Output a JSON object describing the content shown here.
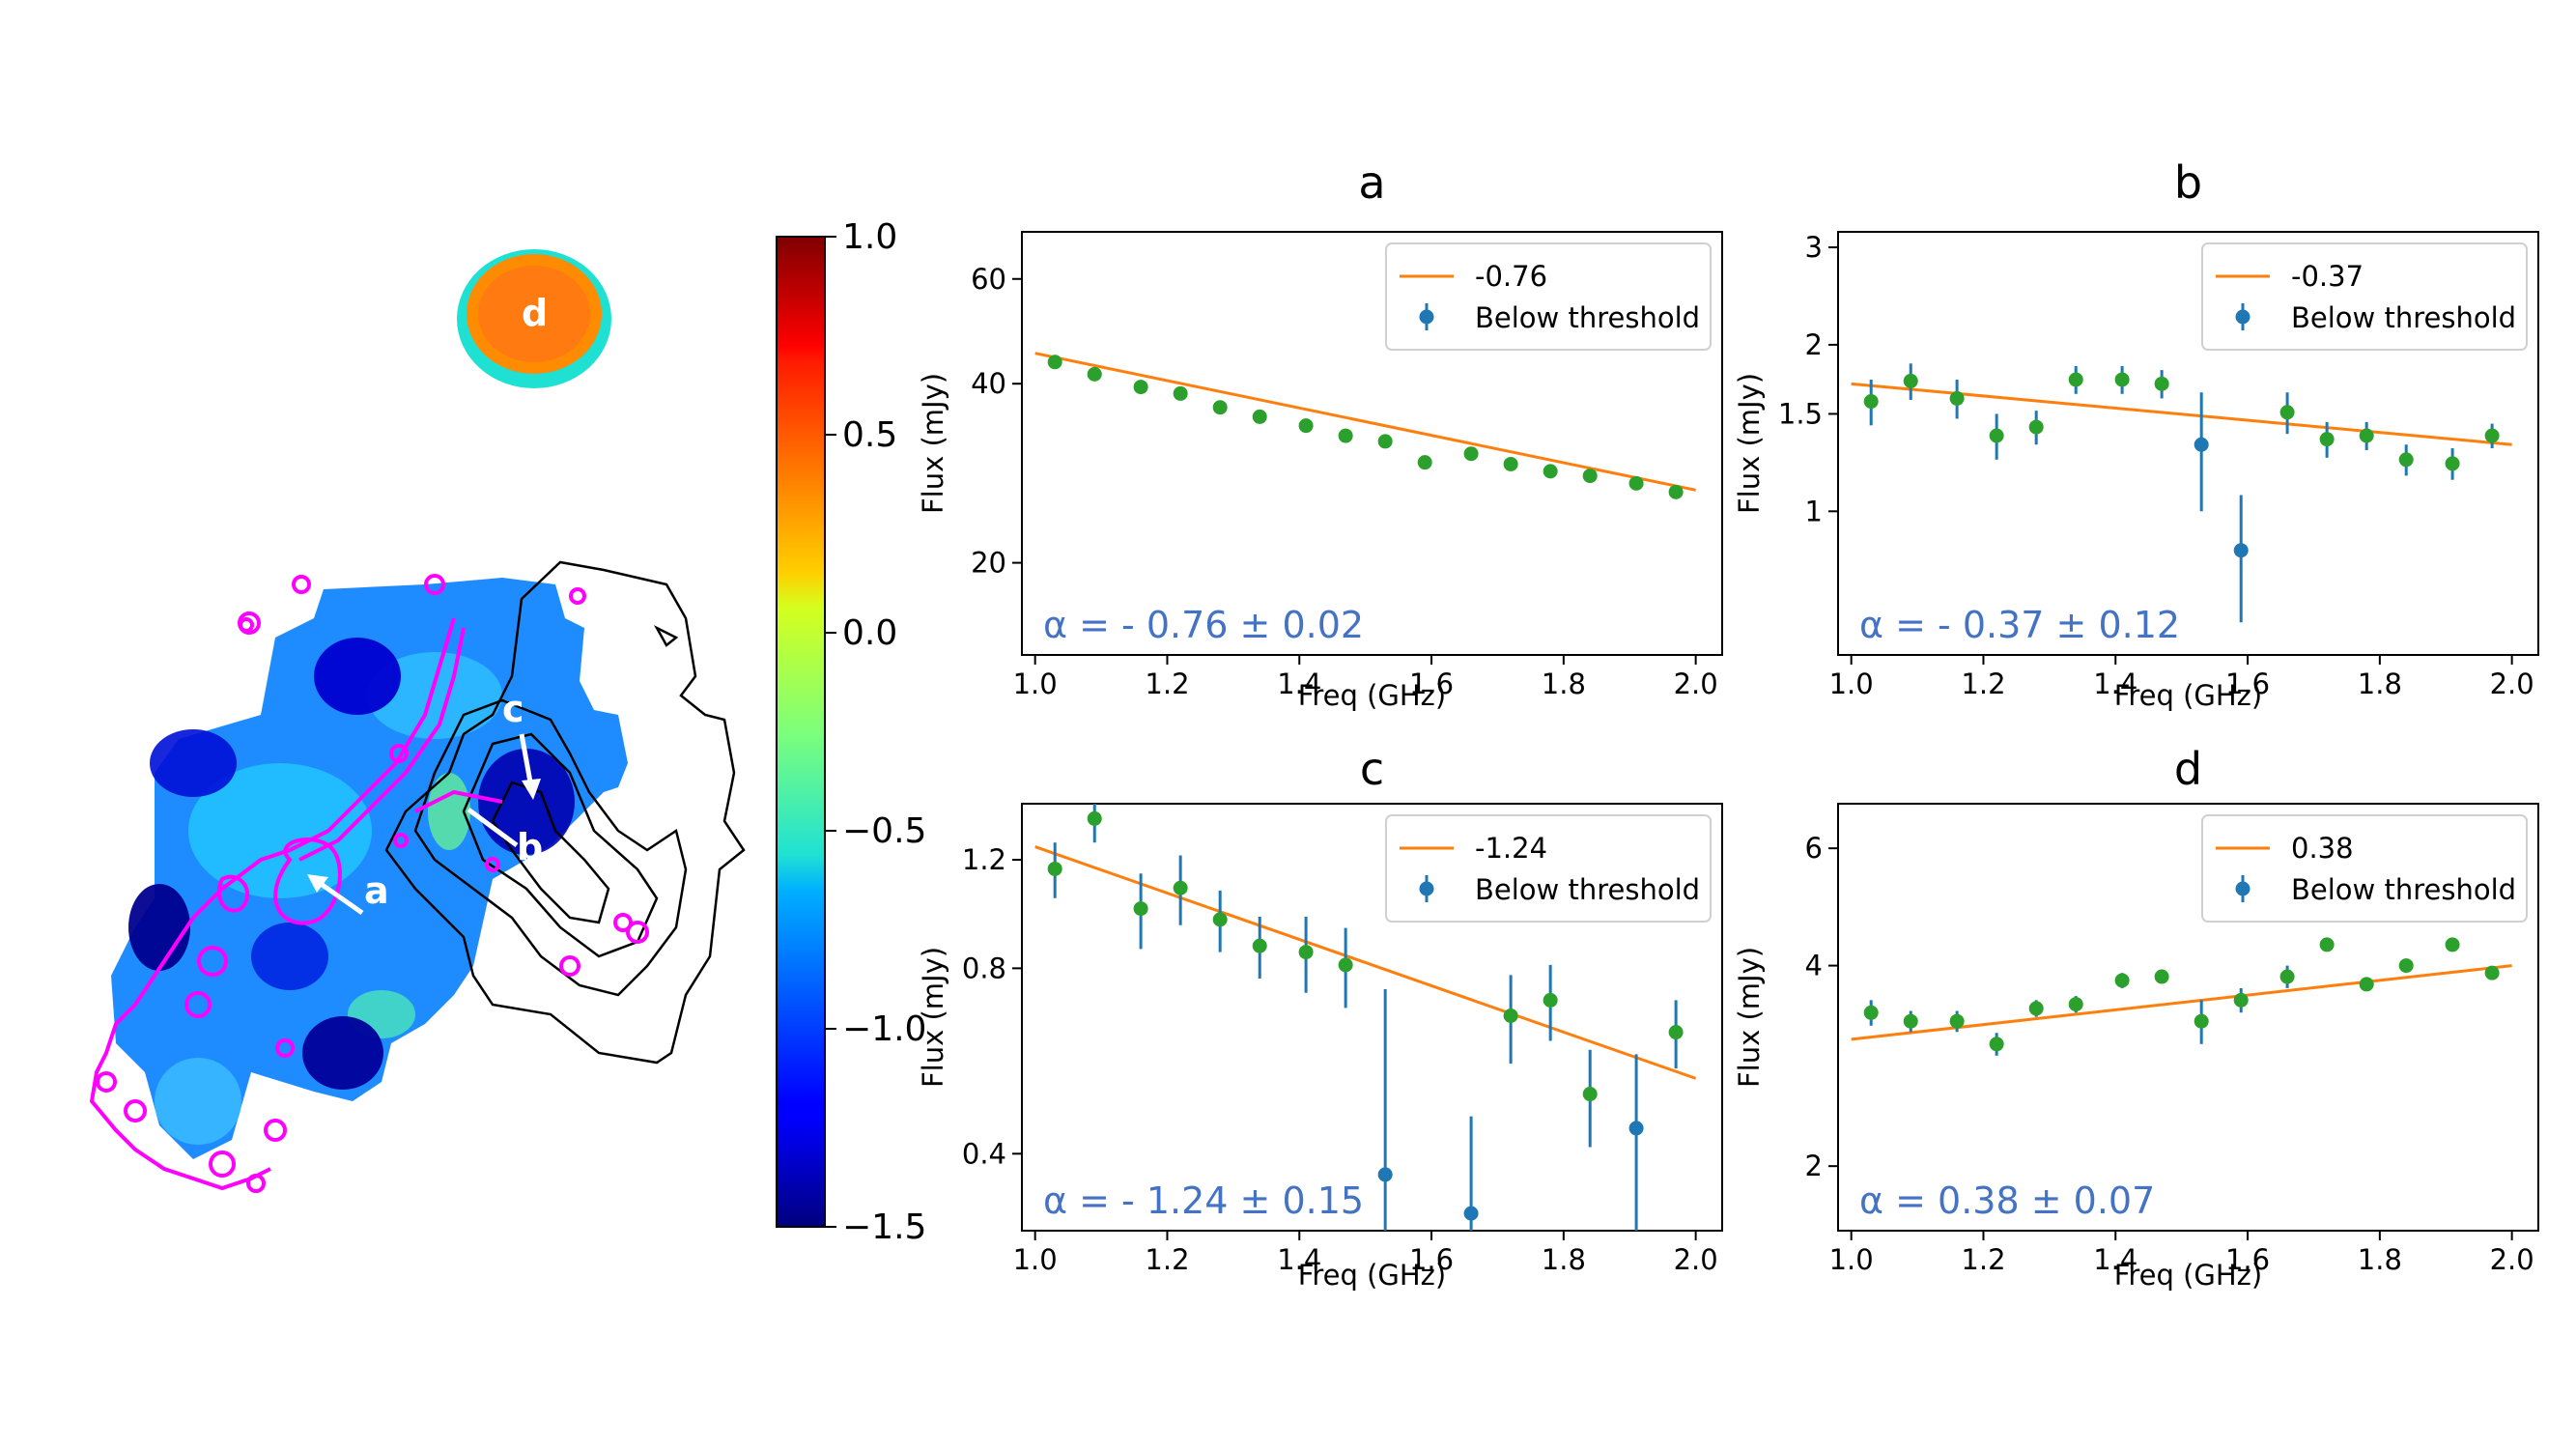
{
  "colorbar": {
    "min": -1.5,
    "max": 1.0,
    "ticks": [
      "1.0",
      "0.5",
      "0.0",
      "−0.5",
      "−1.0",
      "−1.5"
    ],
    "colormap": "jet"
  },
  "map": {
    "region_labels": [
      "a",
      "b",
      "c",
      "d"
    ],
    "contour_colors": {
      "optical": "#ff00ff",
      "radio": "#000000"
    }
  },
  "chart_data": [
    {
      "type": "scatter",
      "title": "a",
      "xlabel": "Freq (GHz)",
      "ylabel": "Flux (mJy)",
      "xscale": "linear",
      "yscale": "log",
      "xlim": [
        0.98,
        2.04
      ],
      "ylim": [
        14,
        72
      ],
      "xticks": [
        "1.0",
        "1.2",
        "1.4",
        "1.6",
        "1.8",
        "2.0"
      ],
      "yticks": [
        "60",
        "40",
        "20"
      ],
      "ytick_values": [
        60,
        40,
        20
      ],
      "legend": {
        "position": "upper right",
        "entries": [
          "-0.76",
          "Below threshold"
        ]
      },
      "annotation": "α = - 0.76 ± 0.02",
      "fit": {
        "slope": -0.76,
        "x": [
          1.0,
          2.0
        ],
        "y": [
          45.0,
          26.5
        ]
      },
      "series": [
        {
          "name": "",
          "color": "#2ca02c",
          "x": [
            1.03,
            1.09,
            1.16,
            1.22,
            1.28,
            1.34,
            1.41,
            1.47,
            1.53,
            1.59,
            1.66,
            1.72,
            1.78,
            1.84,
            1.91,
            1.97
          ],
          "y": [
            43.5,
            41.5,
            39.5,
            38.5,
            36.5,
            35.2,
            34.0,
            32.7,
            32.0,
            29.5,
            30.5,
            29.3,
            28.5,
            28.0,
            27.2,
            26.3
          ],
          "err": [
            0.5,
            0.5,
            0.5,
            0.5,
            0.5,
            0.5,
            0.5,
            0.5,
            0.5,
            0.5,
            0.5,
            0.5,
            0.5,
            0.5,
            0.5,
            0.5
          ]
        },
        {
          "name": "Below threshold",
          "color": "#1f77b4",
          "x": [],
          "y": [],
          "err": []
        }
      ]
    },
    {
      "type": "scatter",
      "title": "b",
      "xlabel": "Freq (GHz)",
      "ylabel": "Flux (mJy)",
      "xscale": "linear",
      "yscale": "log",
      "xlim": [
        0.98,
        2.04
      ],
      "ylim": [
        0.55,
        3.2
      ],
      "xticks": [
        "1.0",
        "1.2",
        "1.4",
        "1.6",
        "1.8",
        "2.0"
      ],
      "yticks": [
        "3",
        "2",
        "1.5",
        "1"
      ],
      "ytick_values": [
        3,
        2,
        1.5,
        1
      ],
      "legend": {
        "position": "upper right",
        "entries": [
          "-0.37",
          "Below threshold"
        ]
      },
      "annotation": "α = - 0.37 ± 0.12",
      "fit": {
        "slope": -0.37,
        "x": [
          1.0,
          2.0
        ],
        "y": [
          1.7,
          1.32
        ]
      },
      "series": [
        {
          "name": "",
          "color": "#2ca02c",
          "x": [
            1.03,
            1.09,
            1.16,
            1.22,
            1.28,
            1.34,
            1.41,
            1.47,
            1.66,
            1.72,
            1.78,
            1.84,
            1.91,
            1.97
          ],
          "y": [
            1.58,
            1.72,
            1.6,
            1.37,
            1.42,
            1.73,
            1.73,
            1.7,
            1.51,
            1.35,
            1.37,
            1.24,
            1.22,
            1.37
          ],
          "err": [
            0.15,
            0.13,
            0.13,
            0.13,
            0.1,
            0.1,
            0.1,
            0.1,
            0.13,
            0.1,
            0.08,
            0.08,
            0.08,
            0.07
          ]
        },
        {
          "name": "Below threshold",
          "color": "#1f77b4",
          "x": [
            1.53,
            1.59
          ],
          "y": [
            1.32,
            0.85
          ],
          "err": [
            0.32,
            0.22
          ]
        }
      ]
    },
    {
      "type": "scatter",
      "title": "c",
      "xlabel": "Freq (GHz)",
      "ylabel": "Flux (mJy)",
      "xscale": "linear",
      "yscale": "log",
      "xlim": [
        0.98,
        2.04
      ],
      "ylim": [
        0.3,
        1.48
      ],
      "xticks": [
        "1.0",
        "1.2",
        "1.4",
        "1.6",
        "1.8",
        "2.0"
      ],
      "yticks": [
        "1.2",
        "0.8",
        "0.4"
      ],
      "ytick_values": [
        1.2,
        0.8,
        0.4
      ],
      "legend": {
        "position": "upper right",
        "entries": [
          "-1.24",
          "Below threshold"
        ]
      },
      "annotation": "α = - 1.24 ± 0.15",
      "fit": {
        "slope": -1.24,
        "x": [
          1.0,
          2.0
        ],
        "y": [
          1.26,
          0.53
        ]
      },
      "series": [
        {
          "name": "",
          "color": "#2ca02c",
          "x": [
            1.03,
            1.09,
            1.16,
            1.22,
            1.28,
            1.34,
            1.41,
            1.47,
            1.72,
            1.78,
            1.84,
            1.97
          ],
          "y": [
            1.16,
            1.4,
            1.0,
            1.08,
            0.96,
            0.87,
            0.85,
            0.81,
            0.67,
            0.71,
            0.5,
            0.63
          ],
          "err": [
            0.12,
            0.12,
            0.14,
            0.14,
            0.11,
            0.1,
            0.12,
            0.12,
            0.11,
            0.1,
            0.09,
            0.08
          ]
        },
        {
          "name": "Below threshold",
          "color": "#1f77b4",
          "x": [
            1.53,
            1.66,
            1.91
          ],
          "y": [
            0.37,
            0.32,
            0.44
          ],
          "err": [
            0.37,
            0.14,
            0.14
          ]
        }
      ]
    },
    {
      "type": "scatter",
      "title": "d",
      "xlabel": "Freq (GHz)",
      "ylabel": "Flux (mJy)",
      "xscale": "linear",
      "yscale": "log",
      "xlim": [
        0.98,
        2.04
      ],
      "ylim": [
        1.6,
        7.0
      ],
      "xticks": [
        "1.0",
        "1.2",
        "1.4",
        "1.6",
        "1.8",
        "2.0"
      ],
      "yticks": [
        "6",
        "4",
        "2"
      ],
      "ytick_values": [
        6,
        4,
        2
      ],
      "legend": {
        "position": "upper right",
        "entries": [
          "0.38",
          "Below threshold"
        ]
      },
      "annotation": "α = 0.38 ± 0.07",
      "fit": {
        "slope": 0.38,
        "x": [
          1.0,
          2.0
        ],
        "y": [
          3.1,
          4.0
        ]
      },
      "series": [
        {
          "name": "",
          "color": "#2ca02c",
          "x": [
            1.03,
            1.09,
            1.16,
            1.22,
            1.28,
            1.34,
            1.41,
            1.47,
            1.53,
            1.59,
            1.66,
            1.72,
            1.78,
            1.84,
            1.91,
            1.97
          ],
          "y": [
            3.4,
            3.3,
            3.3,
            3.05,
            3.45,
            3.5,
            3.8,
            3.85,
            3.3,
            3.55,
            3.85,
            4.3,
            3.75,
            4.0,
            4.3,
            3.9
          ],
          "err": [
            0.15,
            0.12,
            0.12,
            0.12,
            0.1,
            0.1,
            0.1,
            0.08,
            0.25,
            0.15,
            0.15,
            0.08,
            0.08,
            0.08,
            0.08,
            0.08
          ]
        },
        {
          "name": "Below threshold",
          "color": "#1f77b4",
          "x": [],
          "y": [],
          "err": []
        }
      ]
    }
  ]
}
